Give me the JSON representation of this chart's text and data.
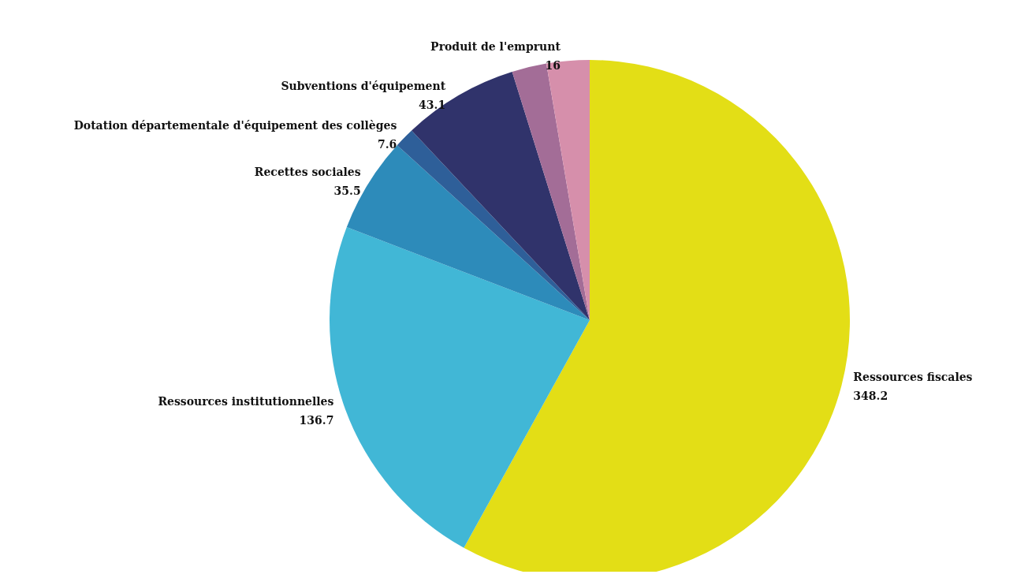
{
  "chart_data": {
    "type": "pie",
    "categories": [
      "Ressources fiscales",
      "Ressources institutionnelles",
      "Recettes sociales",
      "Dotation départementale d'équipement des collèges",
      "Subventions d'équipement",
      null,
      "Produit de l'emprunt"
    ],
    "values": [
      348.2,
      136.7,
      35.5,
      7.6,
      43.1,
      12.9,
      16
    ],
    "colors": [
      "#e3de16",
      "#41b7d6",
      "#2d8bba",
      "#2e5f99",
      "#30336b",
      "#a36d97",
      "#d68fab"
    ],
    "value_labels": [
      "348.2",
      "136.7",
      "35.5",
      "7.6",
      "43.1",
      null,
      "16"
    ],
    "legend": false
  }
}
